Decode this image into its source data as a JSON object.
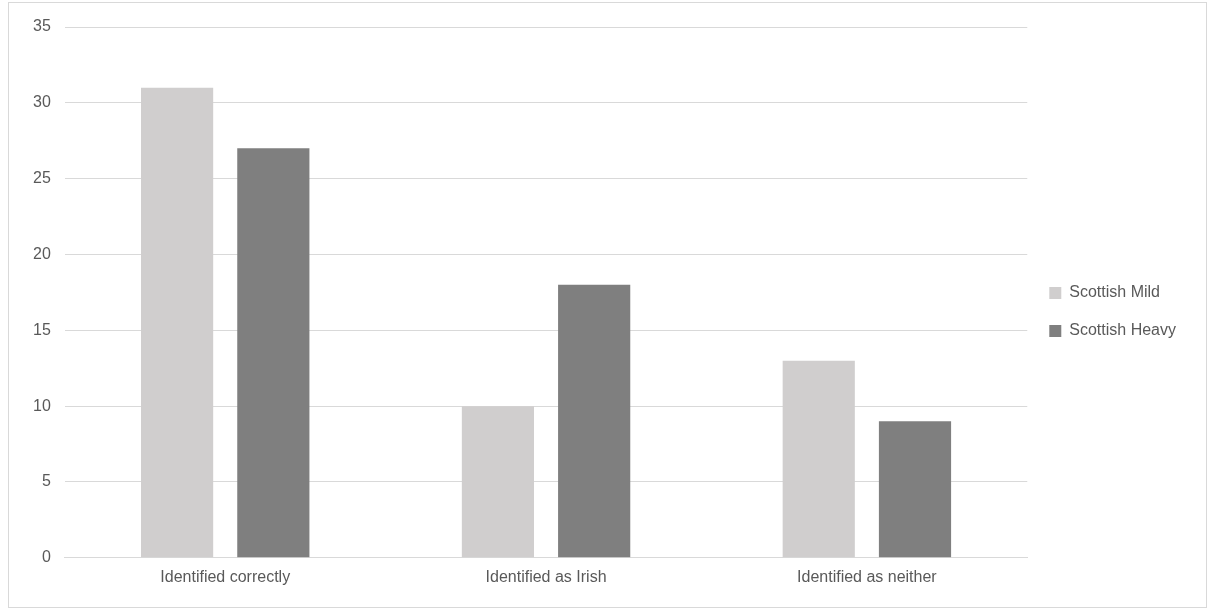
{
  "chart_data": {
    "type": "bar",
    "categories": [
      "Identified correctly",
      "Identified as Irish",
      "Identified as neither"
    ],
    "series": [
      {
        "name": "Scottish Mild",
        "color": "#d0cece",
        "values": [
          31,
          10,
          13
        ]
      },
      {
        "name": "Scottish Heavy",
        "color": "#7f7f7f",
        "values": [
          27,
          18,
          9
        ]
      }
    ],
    "ylim": [
      0,
      35
    ],
    "yticks": [
      0,
      5,
      10,
      15,
      20,
      25,
      30,
      35
    ],
    "grid": "y",
    "legend": "right"
  }
}
